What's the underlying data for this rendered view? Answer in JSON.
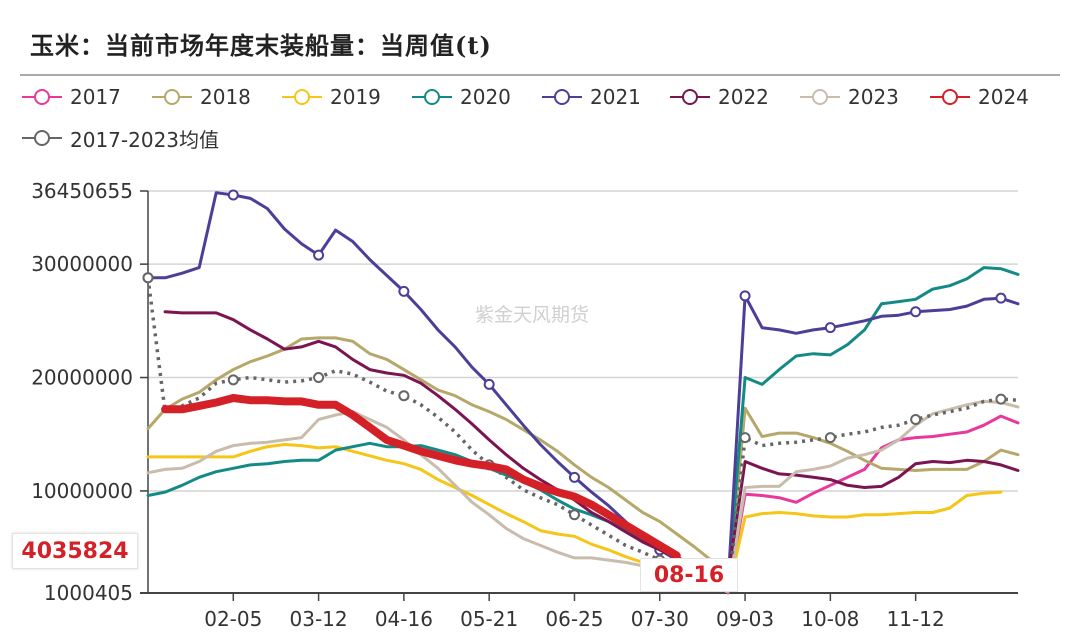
{
  "title": "玉米：当前市场年度末装船量：当周值(t)",
  "watermark": "紫金天风期货",
  "chart_data": {
    "type": "line",
    "title": "玉米：当前市场年度末装船量：当周值(t)",
    "xlabel": "",
    "ylabel": "",
    "ylim": [
      1000405,
      36450655
    ],
    "y_ticks": [
      "36450655",
      "30000000",
      "20000000",
      "10000000",
      "1000405"
    ],
    "y_tick_values": [
      36450655,
      30000000,
      20000000,
      10000000,
      1000405
    ],
    "x_tick_labels": [
      {
        "index": 5,
        "label": "02-05"
      },
      {
        "index": 10,
        "label": "03-12"
      },
      {
        "index": 15,
        "label": "04-16"
      },
      {
        "index": 20,
        "label": "05-21"
      },
      {
        "index": 25,
        "label": "06-25"
      },
      {
        "index": 30,
        "label": "07-30"
      },
      {
        "index": 35,
        "label": "09-03"
      },
      {
        "index": 40,
        "label": "10-08"
      },
      {
        "index": 45,
        "label": "11-12"
      }
    ],
    "grid": true,
    "legend_position": "top-left",
    "axis_pointer": {
      "x_label": "08-16",
      "y_label": "4035824",
      "color": "#d42027"
    },
    "series": [
      {
        "name": "2017",
        "color": "#e8389c",
        "style": "solid",
        "values": [
          null,
          null,
          null,
          null,
          null,
          null,
          null,
          null,
          null,
          null,
          null,
          null,
          null,
          null,
          null,
          null,
          null,
          null,
          null,
          null,
          null,
          null,
          null,
          null,
          null,
          null,
          null,
          null,
          null,
          null,
          null,
          null,
          null,
          null,
          1000000.0,
          9700000.0,
          9600000.0,
          9400000.0,
          9000000.0,
          9800000.0,
          10500000.0,
          11200000.0,
          11900000.0,
          13800000.0,
          14500000.0,
          14700000.0,
          14800000.0,
          15000000.0,
          15200000.0,
          15800000.0,
          16600000.0,
          16000000.0
        ]
      },
      {
        "name": "2018",
        "color": "#b5a86a",
        "style": "solid",
        "values": [
          15500000.0,
          17200000.0,
          18100000.0,
          18700000.0,
          19800000.0,
          20700000.0,
          21400000.0,
          21900000.0,
          22500000.0,
          23400000.0,
          23500000.0,
          23500000.0,
          23200000.0,
          22100000.0,
          21600000.0,
          20700000.0,
          19800000.0,
          18900000.0,
          18400000.0,
          17600000.0,
          17000000.0,
          16300000.0,
          15400000.0,
          14500000.0,
          13500000.0,
          12300000.0,
          11200000.0,
          10300000.0,
          9200000.0,
          8100000.0,
          7300000.0,
          6200000.0,
          5100000.0,
          3900000.0,
          1200000.0,
          17300000.0,
          14800000.0,
          15100000.0,
          15100000.0,
          14700000.0,
          14200000.0,
          13500000.0,
          12700000.0,
          12000000.0,
          11900000.0,
          11800000.0,
          11900000.0,
          11900000.0,
          11900000.0,
          12600000.0,
          13600000.0,
          13200000.0
        ]
      },
      {
        "name": "2019",
        "color": "#f5c518",
        "style": "solid",
        "values": [
          13000000.0,
          13000000.0,
          13000000.0,
          13000000.0,
          13000000.0,
          13000000.0,
          13500000.0,
          13900000.0,
          14100000.0,
          14000000.0,
          13800000.0,
          13900000.0,
          13500000.0,
          13100000.0,
          12700000.0,
          12400000.0,
          11900000.0,
          11000000.0,
          10300000.0,
          9600000.0,
          8800000.0,
          8000000.0,
          7300000.0,
          6500000.0,
          6200000.0,
          6000000.0,
          5300000.0,
          4800000.0,
          4200000.0,
          3700000.0,
          3200000.0,
          2700000.0,
          2300000.0,
          1800000.0,
          1100000.0,
          7700000.0,
          8000000.0,
          8100000.0,
          8000000.0,
          7800000.0,
          7700000.0,
          7700000.0,
          7900000.0,
          7900000.0,
          8000000.0,
          8100000.0,
          8100000.0,
          8500000.0,
          9600000.0,
          9800000.0,
          9900000.0,
          null
        ]
      },
      {
        "name": "2020",
        "color": "#138a86",
        "style": "solid",
        "values": [
          9600000.0,
          9900000.0,
          10500000.0,
          11200000.0,
          11700000.0,
          12000000.0,
          12300000.0,
          12400000.0,
          12600000.0,
          12700000.0,
          12700000.0,
          13600000.0,
          13900000.0,
          14200000.0,
          13900000.0,
          13900000.0,
          14000000.0,
          13600000.0,
          13200000.0,
          12600000.0,
          12000000.0,
          11400000.0,
          10800000.0,
          10100000.0,
          9200000.0,
          8400000.0,
          7900000.0,
          7300000.0,
          6600000.0,
          5700000.0,
          5000000.0,
          4200000.0,
          3400000.0,
          2700000.0,
          1900000.0,
          20000000.0,
          19400000.0,
          20700000.0,
          21900000.0,
          22100000.0,
          22000000.0,
          22900000.0,
          24200000.0,
          26500000.0,
          26700000.0,
          26900000.0,
          27800000.0,
          28100000.0,
          28700000.0,
          29700000.0,
          29600000.0,
          29100000.0
        ]
      },
      {
        "name": "2021",
        "color": "#4b3f98",
        "style": "solid",
        "markers": true,
        "values": [
          28800000.0,
          28800000.0,
          29200000.0,
          29700000.0,
          36300000.0,
          36100000.0,
          35800000.0,
          34900000.0,
          33100000.0,
          31800000.0,
          30800000.0,
          33000000.0,
          32000000.0,
          30400000.0,
          29000000.0,
          27600000.0,
          26000000.0,
          24200000.0,
          22700000.0,
          20900000.0,
          19400000.0,
          17600000.0,
          15800000.0,
          14100000.0,
          12600000.0,
          11200000.0,
          9900000.0,
          8700000.0,
          7300000.0,
          5800000.0,
          4800000.0,
          3900000.0,
          3200000.0,
          2400000.0,
          1700000.0,
          27200000.0,
          24400000.0,
          24200000.0,
          23900000.0,
          24200000.0,
          24400000.0,
          24700000.0,
          25000000.0,
          25400000.0,
          25500000.0,
          25800000.0,
          25900000.0,
          26000000.0,
          26300000.0,
          26900000.0,
          27000000.0,
          26500000.0
        ]
      },
      {
        "name": "2022",
        "color": "#7b1450",
        "style": "solid",
        "values": [
          null,
          25800000.0,
          25700000.0,
          25700000.0,
          25700000.0,
          25100000.0,
          24200000.0,
          23400000.0,
          22500000.0,
          22700000.0,
          23200000.0,
          22700000.0,
          21600000.0,
          20700000.0,
          20400000.0,
          20200000.0,
          19500000.0,
          18400000.0,
          17200000.0,
          15900000.0,
          14500000.0,
          13200000.0,
          12000000.0,
          11000000.0,
          10100000.0,
          9200000.0,
          8100000.0,
          7300000.0,
          6400000.0,
          5500000.0,
          4800000.0,
          4100000.0,
          3500000.0,
          3000000.0,
          2300000.0,
          12600000.0,
          12000000.0,
          11500000.0,
          11400000.0,
          11200000.0,
          11000000.0,
          10500000.0,
          10300000.0,
          10400000.0,
          11200000.0,
          12400000.0,
          12600000.0,
          12500000.0,
          12700000.0,
          12600000.0,
          12300000.0,
          11800000.0
        ]
      },
      {
        "name": "2023",
        "color": "#c9bcac",
        "style": "solid",
        "values": [
          11600000.0,
          11900000.0,
          12000000.0,
          12600000.0,
          13500000.0,
          14000000.0,
          14200000.0,
          14300000.0,
          14500000.0,
          14700000.0,
          16300000.0,
          16700000.0,
          17000000.0,
          16300000.0,
          15600000.0,
          14500000.0,
          13200000.0,
          12000000.0,
          10500000.0,
          9000000.0,
          7900000.0,
          6700000.0,
          5800000.0,
          5200000.0,
          4600000.0,
          4100000.0,
          4100000.0,
          3900000.0,
          3700000.0,
          3400000.0,
          3000000.0,
          2700000.0,
          2100000.0,
          1700000.0,
          1100000.0,
          10300000.0,
          10400000.0,
          10400000.0,
          11700000.0,
          11900000.0,
          12200000.0,
          12900000.0,
          13200000.0,
          13600000.0,
          14500000.0,
          15800000.0,
          16800000.0,
          17200000.0,
          17600000.0,
          17900000.0,
          17800000.0,
          17400000.0
        ]
      },
      {
        "name": "2017-2023均值",
        "color": "#666666",
        "style": "dotted",
        "markers": true,
        "values": [
          28800000.0,
          17000000.0,
          17500000.0,
          18200000.0,
          19500000.0,
          19800000.0,
          20000000.0,
          19800000.0,
          19600000.0,
          19700000.0,
          20000000.0,
          20600000.0,
          20300000.0,
          19600000.0,
          18800000.0,
          18400000.0,
          17600000.0,
          16500000.0,
          15200000.0,
          13600000.0,
          12300000.0,
          11200000.0,
          10100000.0,
          9400000.0,
          8800000.0,
          7900000.0,
          7000000.0,
          6100000.0,
          5200000.0,
          4600000.0,
          3900000.0,
          3200000.0,
          2600000.0,
          2100000.0,
          1200000.0,
          14700000.0,
          14000000.0,
          14200000.0,
          14300000.0,
          14500000.0,
          14700000.0,
          15000000.0,
          15200000.0,
          15600000.0,
          15800000.0,
          16300000.0,
          16700000.0,
          17000000.0,
          17300000.0,
          17900000.0,
          18100000.0,
          18000000.0
        ]
      },
      {
        "name": "2024",
        "color": "#d42027",
        "style": "bold",
        "values": [
          null,
          17200000.0,
          17200000.0,
          17500000.0,
          17800000.0,
          18200000.0,
          18000000.0,
          18000000.0,
          17900000.0,
          17900000.0,
          17600000.0,
          17600000.0,
          16700000.0,
          15600000.0,
          14500000.0,
          14000000.0,
          13500000.0,
          13100000.0,
          12700000.0,
          12400000.0,
          12200000.0,
          11900000.0,
          11000000.0,
          10400000.0,
          9900000.0,
          9500000.0,
          8800000.0,
          7900000.0,
          7000000.0,
          6100000.0,
          5200000.0,
          4300000.0,
          null,
          null,
          null,
          null,
          null,
          null,
          null,
          null,
          null,
          null,
          null,
          null,
          null,
          null,
          null,
          null,
          null,
          null,
          null,
          null
        ]
      }
    ]
  }
}
